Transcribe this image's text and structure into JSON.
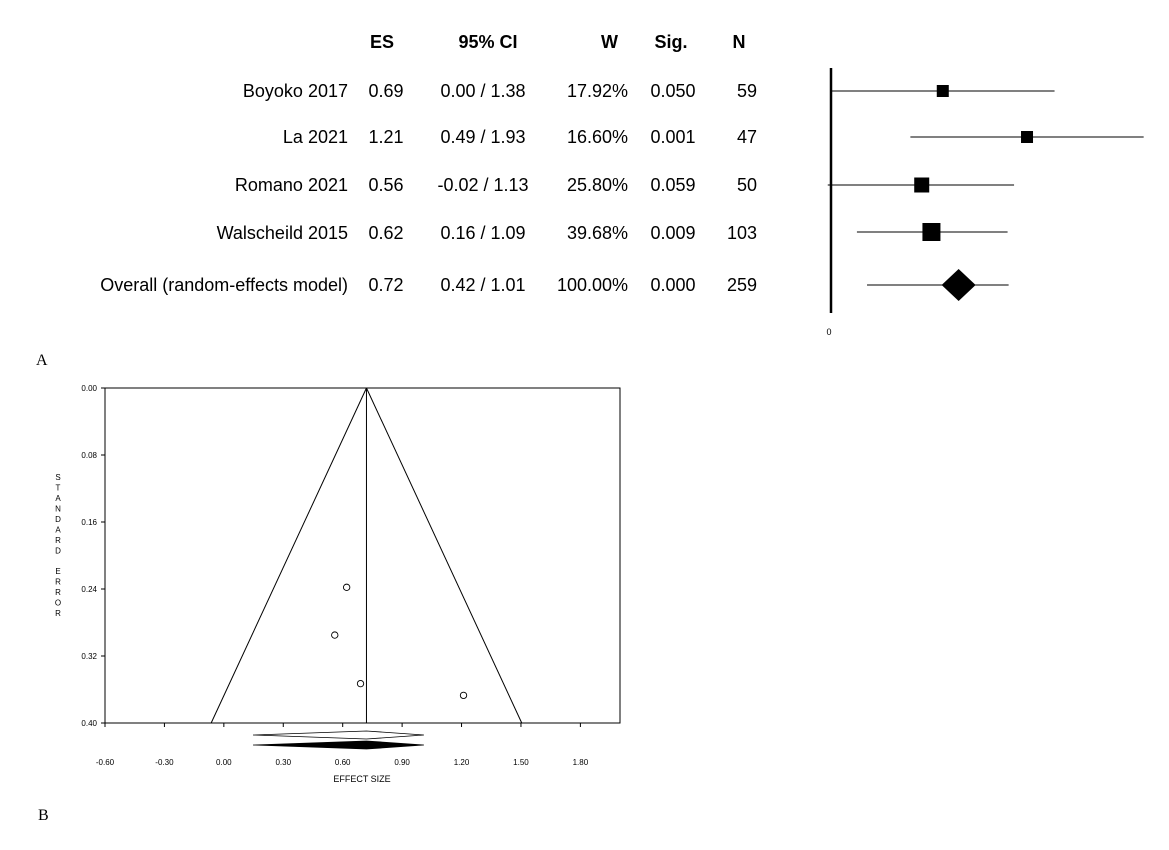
{
  "panel_labels": {
    "a": "A",
    "b": "B"
  },
  "forest_table": {
    "headers": {
      "es": "ES",
      "ci": "95% CI",
      "w": "W",
      "sig": "Sig.",
      "n": "N"
    },
    "rows": [
      {
        "study": "Boyoko 2017",
        "es": "0.69",
        "ci": "0.00 / 1.38",
        "w": "17.92%",
        "sig": "0.050",
        "n": "59"
      },
      {
        "study": "La 2021",
        "es": "1.21",
        "ci": "0.49 / 1.93",
        "w": "16.60%",
        "sig": "0.001",
        "n": "47"
      },
      {
        "study": "Romano 2021",
        "es": "0.56",
        "ci": "-0.02 / 1.13",
        "w": "25.80%",
        "sig": "0.059",
        "n": "50"
      },
      {
        "study": "Walscheild 2015",
        "es": "0.62",
        "ci": "0.16 / 1.09",
        "w": "39.68%",
        "sig": "0.009",
        "n": "103"
      },
      {
        "study": "Overall (random-effects model)",
        "es": "0.72",
        "ci": "0.42 / 1.01",
        "w": "100.00%",
        "sig": "0.000",
        "n": "259"
      }
    ]
  },
  "chart_data": [
    {
      "type": "scatter",
      "subtype": "forest-plot",
      "zero_tick_label": "0",
      "x_range": [
        0,
        1.95
      ],
      "studies": [
        {
          "label": "Boyoko 2017",
          "es": 0.69,
          "lo": 0.0,
          "hi": 1.38,
          "weight": 17.92
        },
        {
          "label": "La 2021",
          "es": 1.21,
          "lo": 0.49,
          "hi": 1.93,
          "weight": 16.6
        },
        {
          "label": "Romano 2021",
          "es": 0.56,
          "lo": -0.02,
          "hi": 1.13,
          "weight": 25.8
        },
        {
          "label": "Walscheild 2015",
          "es": 0.62,
          "lo": 0.16,
          "hi": 1.09,
          "weight": 39.68
        }
      ],
      "overall": {
        "es": 0.72,
        "lo": 0.42,
        "hi": 1.01
      }
    },
    {
      "type": "scatter",
      "subtype": "funnel-plot",
      "xlabel": "EFFECT SIZE",
      "ylabel": "STANDARD ERROR",
      "xlim": [
        -0.6,
        2.0
      ],
      "ylim": [
        0.0,
        0.4
      ],
      "x_ticks": [
        "-0.60",
        "-0.30",
        "0.00",
        "0.30",
        "0.60",
        "0.90",
        "1.20",
        "1.50",
        "1.80"
      ],
      "x_tick_values": [
        -0.6,
        -0.3,
        0.0,
        0.3,
        0.6,
        0.9,
        1.2,
        1.5,
        1.8
      ],
      "y_ticks": [
        "0.00",
        "0.08",
        "0.16",
        "0.24",
        "0.32",
        "0.40"
      ],
      "y_tick_values": [
        0.0,
        0.08,
        0.16,
        0.24,
        0.32,
        0.4
      ],
      "center_es": 0.72,
      "points": [
        {
          "x": 0.62,
          "y": 0.238
        },
        {
          "x": 0.56,
          "y": 0.295
        },
        {
          "x": 0.69,
          "y": 0.353
        },
        {
          "x": 1.21,
          "y": 0.367
        }
      ],
      "diamonds": [
        {
          "style": "open",
          "es": 0.72,
          "lo": 0.42,
          "hi": 1.01
        },
        {
          "style": "filled",
          "es": 0.72,
          "lo": 0.42,
          "hi": 1.01
        }
      ]
    }
  ]
}
